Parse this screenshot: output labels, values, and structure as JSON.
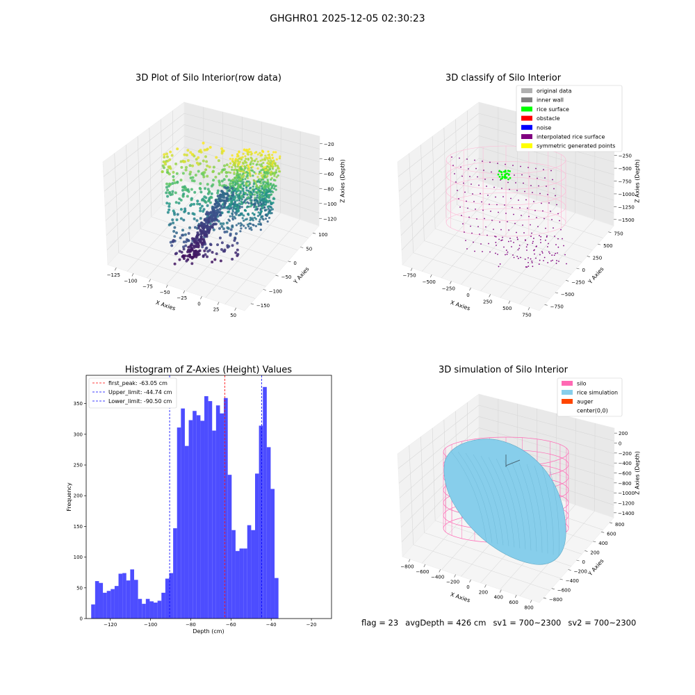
{
  "figure": {
    "title": "GHGHR01 2025-12-05 02:30:23"
  },
  "status": {
    "flag": "flag = 23",
    "avg_depth": "avgDepth = 426 cm",
    "sv1": "sv1 = 700~2300",
    "sv2": "sv2 = 700~2300"
  },
  "colors": {
    "histogram_bar": "#4d4dff",
    "first_peak_line": "#ff0000",
    "limit_lines": "#0000ff",
    "silo": "#ff69b4",
    "rice_simulation": "#87ceeb",
    "auger": "#ff4500",
    "original_data": "#b0b0b0",
    "inner_wall": "#808080",
    "rice_surface": "#00ff00",
    "obstacle": "#ff0000",
    "noise": "#0000ff",
    "interpolated_rice_surface": "#800080",
    "symmetric_generated_points": "#ffff00"
  },
  "chart_data": [
    {
      "type": "scatter",
      "title": "3D Plot of Silo Interior(row data)",
      "xlabel": "X Axies",
      "ylabel": "Y Axies",
      "zlabel": "Z Axies (Depth)",
      "x_ticks": [
        "−125",
        "−100",
        "−75",
        "−50",
        "−25",
        "0",
        "25",
        "50"
      ],
      "y_ticks": [
        "100",
        "50",
        "0",
        "−50",
        "−100",
        "−150"
      ],
      "z_ticks": [
        "−20",
        "−40",
        "−60",
        "−80",
        "−100",
        "−120"
      ],
      "colormap": "viridis"
    },
    {
      "type": "scatter",
      "title": "3D classify of Silo Interior",
      "xlabel": "X Axies",
      "ylabel": "Y Axies",
      "zlabel": "Z Axies (Depth)",
      "x_ticks": [
        "−750",
        "−500",
        "−250",
        "0",
        "250",
        "500",
        "750"
      ],
      "y_ticks": [
        "750",
        "500",
        "250",
        "0",
        "−250",
        "−500",
        "−750"
      ],
      "z_ticks": [
        "0",
        "−250",
        "−500",
        "−750",
        "−1000",
        "−1250",
        "−1500"
      ],
      "legend": [
        {
          "label": "original data",
          "color": "#b0b0b0"
        },
        {
          "label": "inner wall",
          "color": "#808080"
        },
        {
          "label": "rice surface",
          "color": "#00ff00"
        },
        {
          "label": "obstacle",
          "color": "#ff0000"
        },
        {
          "label": "noise",
          "color": "#0000ff"
        },
        {
          "label": "interpolated rice surface",
          "color": "#800080"
        },
        {
          "label": "symmetric generated points",
          "color": "#ffff00"
        }
      ],
      "legend_loc": "upper right"
    },
    {
      "type": "bar",
      "title": "Histogram of Z-Axies (Height) Values",
      "xlabel": "Depth (cm)",
      "ylabel": "Frequency",
      "bin_start": -129.5,
      "bin_width": 1.94,
      "values": [
        23,
        61,
        58,
        42,
        45,
        48,
        53,
        73,
        74,
        62,
        80,
        63,
        32,
        24,
        32,
        28,
        26,
        29,
        42,
        65,
        74,
        147,
        311,
        342,
        281,
        323,
        338,
        331,
        322,
        362,
        354,
        306,
        347,
        334,
        359,
        234,
        144,
        110,
        114,
        114,
        152,
        144,
        236,
        314,
        377,
        279,
        211,
        66
      ],
      "xlim": [
        -132,
        -10
      ],
      "ylim": [
        0,
        396
      ],
      "x_ticks": [
        -120,
        -100,
        -80,
        -60,
        -40,
        -20
      ],
      "y_ticks": [
        0,
        50,
        100,
        150,
        200,
        250,
        300,
        350
      ],
      "vlines": [
        {
          "label": "first_peak: -63.05 cm",
          "x": -63.05,
          "color": "#ff0000"
        },
        {
          "label": "Upper_limit: -44.74 cm",
          "x": -44.74,
          "color": "#0000ff"
        },
        {
          "label": "Lower_limit: -90.50 cm",
          "x": -90.5,
          "color": "#0000ff"
        }
      ],
      "legend_loc": "upper left"
    },
    {
      "type": "scatter",
      "title": "3D simulation of Silo Interior",
      "xlabel": "X Axies",
      "ylabel": "Y Axies",
      "zlabel": "Z Axies (Depth)",
      "x_ticks": [
        "−800",
        "−600",
        "−400",
        "−200",
        "0",
        "200",
        "400",
        "600",
        "800"
      ],
      "y_ticks": [
        "800",
        "600",
        "400",
        "200",
        "0",
        "−200",
        "−400",
        "−600",
        "−800"
      ],
      "z_ticks": [
        "200",
        "0",
        "−200",
        "−400",
        "−600",
        "−800",
        "−1000",
        "−1200",
        "−1400"
      ],
      "legend": [
        {
          "label": "silo",
          "color": "#ff69b4"
        },
        {
          "label": "rice simulation",
          "color": "#87ceeb"
        },
        {
          "label": "auger",
          "color": "#ff4500"
        },
        {
          "label": "center(0,0)",
          "color": ""
        }
      ],
      "legend_loc": "upper right"
    }
  ]
}
